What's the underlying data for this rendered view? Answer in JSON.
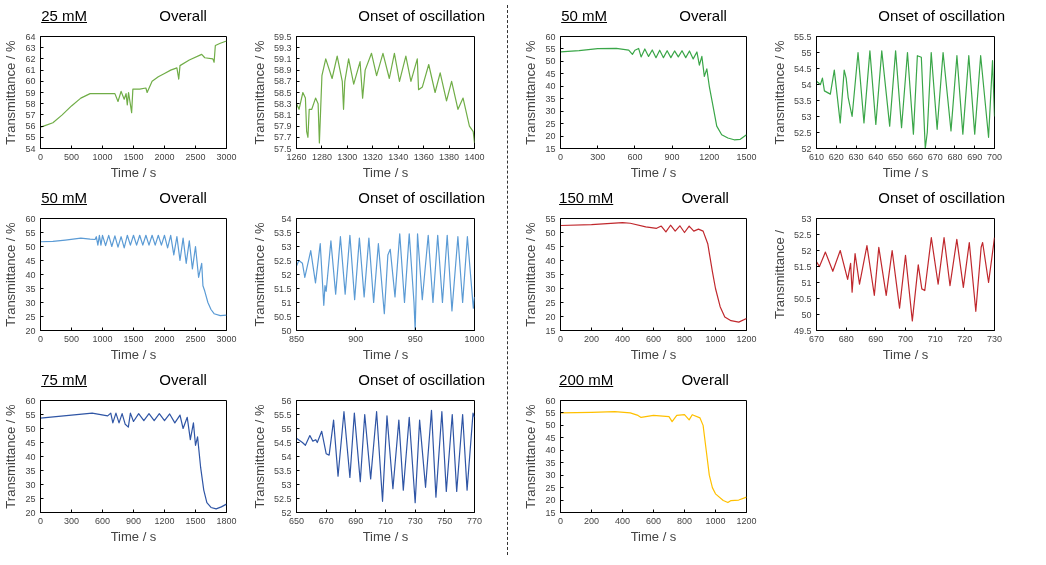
{
  "chart_data": [
    {
      "type": "line",
      "title": "25 mM",
      "subtitle": "Overall",
      "xlabel": "Time / s",
      "ylabel": "Transmittance / %",
      "color": "#70ad47",
      "xlim": [
        0,
        3000
      ],
      "xticks": [
        0,
        500,
        1000,
        1500,
        2000,
        2500,
        3000
      ],
      "ylim": [
        54,
        64
      ],
      "yticks": [
        54,
        55,
        56,
        57,
        58,
        59,
        60,
        61,
        62,
        63,
        64
      ],
      "x": [
        0,
        50,
        200,
        350,
        500,
        650,
        800,
        1000,
        1200,
        1250,
        1300,
        1350,
        1380,
        1400,
        1420,
        1470,
        1490,
        1600,
        1700,
        1720,
        1800,
        1900,
        2000,
        2100,
        2200,
        2230,
        2250,
        2400,
        2600,
        2650,
        2780,
        2800,
        2820,
        2900,
        3000
      ],
      "values": [
        55.9,
        56.0,
        56.3,
        57.0,
        57.8,
        58.5,
        58.9,
        58.9,
        58.9,
        58.2,
        59.1,
        58.4,
        58.9,
        57.9,
        59.0,
        57.2,
        59.3,
        59.3,
        59.4,
        59.0,
        60.0,
        60.4,
        60.7,
        61.0,
        61.2,
        60.2,
        61.4,
        61.9,
        62.4,
        62.1,
        62.0,
        61.7,
        63.2,
        63.4,
        63.6
      ]
    },
    {
      "type": "line",
      "title": "Onset of oscillation",
      "xlabel": "Time / s",
      "ylabel": "Transmittance / %",
      "color": "#70ad47",
      "xlim": [
        1260,
        1400
      ],
      "xticks": [
        1260,
        1280,
        1300,
        1320,
        1340,
        1360,
        1380,
        1400
      ],
      "ylim": [
        57.5,
        59.5
      ],
      "yticks": [
        57.5,
        57.7,
        57.9,
        58.1,
        58.3,
        58.5,
        58.7,
        58.9,
        59.1,
        59.3,
        59.5
      ],
      "x": [
        1260,
        1262,
        1265,
        1267,
        1268,
        1269,
        1270,
        1272,
        1275,
        1277,
        1278,
        1279,
        1280,
        1283,
        1288,
        1292,
        1296,
        1297,
        1298,
        1301,
        1305,
        1310,
        1312,
        1314,
        1319,
        1323,
        1328,
        1333,
        1337,
        1341,
        1346,
        1350,
        1355,
        1356,
        1359,
        1364,
        1369,
        1373,
        1378,
        1382,
        1387,
        1391,
        1396,
        1399,
        1400
      ],
      "values": [
        58.3,
        58.2,
        58.5,
        58.4,
        57.8,
        57.7,
        58.2,
        58.2,
        58.4,
        58.3,
        57.6,
        58.2,
        58.8,
        59.1,
        58.75,
        59.15,
        58.7,
        58.2,
        58.7,
        59.1,
        58.65,
        59.05,
        58.4,
        58.9,
        59.2,
        58.8,
        59.2,
        58.75,
        59.2,
        58.7,
        59.15,
        58.7,
        59.1,
        58.55,
        58.6,
        59.0,
        58.5,
        58.85,
        58.35,
        58.7,
        58.2,
        58.4,
        57.9,
        57.8,
        57.6
      ]
    },
    {
      "type": "line",
      "title": "50 mM",
      "subtitle": "Overall",
      "xlabel": "Time / s",
      "ylabel": "Transmittance / %",
      "color": "#3aa648",
      "xlim": [
        0,
        1500
      ],
      "xticks": [
        0,
        300,
        600,
        900,
        1200,
        1500
      ],
      "ylim": [
        15,
        60
      ],
      "yticks": [
        15,
        20,
        25,
        30,
        35,
        40,
        45,
        50,
        55,
        60
      ],
      "x": [
        0,
        150,
        300,
        450,
        550,
        580,
        600,
        630,
        650,
        680,
        710,
        740,
        770,
        800,
        830,
        860,
        890,
        920,
        950,
        980,
        1010,
        1040,
        1070,
        1100,
        1120,
        1140,
        1160,
        1180,
        1200,
        1230,
        1260,
        1300,
        1350,
        1400,
        1450,
        1500
      ],
      "values": [
        53.8,
        54.3,
        55.1,
        55.2,
        54.5,
        52.8,
        54.5,
        55.2,
        51.8,
        55.0,
        52,
        54.6,
        51.5,
        54.5,
        51.5,
        54.3,
        51.5,
        54.2,
        51.8,
        54.3,
        51.5,
        54.2,
        51,
        53.8,
        48.5,
        52,
        44,
        47,
        40,
        32,
        24,
        20.5,
        19.2,
        18.5,
        18.7,
        20.5
      ]
    },
    {
      "type": "line",
      "title": "Onset of oscillation",
      "xlabel": "Time / s",
      "ylabel": "Transmittance / %",
      "color": "#3aa648",
      "xlim": [
        610,
        700
      ],
      "xticks": [
        610,
        620,
        630,
        640,
        650,
        660,
        670,
        680,
        690,
        700
      ],
      "ylim": [
        52,
        55.5
      ],
      "yticks": [
        52,
        52.5,
        53,
        53.5,
        54,
        54.5,
        55,
        55.5
      ],
      "x": [
        610,
        612,
        613,
        614,
        617,
        619,
        622,
        624,
        625,
        626,
        628,
        631,
        634,
        637,
        640,
        643,
        647,
        650,
        653,
        656,
        659,
        661,
        663,
        665,
        666,
        668,
        671,
        674,
        678,
        681,
        684,
        687,
        690,
        693,
        697,
        699,
        700
      ],
      "values": [
        54.1,
        54.0,
        54.2,
        53.8,
        53.7,
        54.45,
        52.8,
        54.45,
        54.2,
        53.6,
        53.0,
        55.0,
        52.8,
        55.05,
        52.75,
        55.05,
        52.7,
        55.05,
        52.65,
        55.0,
        52.45,
        54.9,
        54.85,
        52.0,
        52.5,
        55.0,
        52.6,
        55.0,
        52.55,
        54.9,
        52.45,
        54.9,
        52.45,
        54.9,
        52.35,
        54.75,
        53.0
      ]
    },
    {
      "type": "line",
      "title": "50 mM",
      "subtitle": "Overall",
      "xlabel": "Time / s",
      "ylabel": "Transmittance / %",
      "color": "#5b9bd5",
      "xlim": [
        0,
        3000
      ],
      "xticks": [
        0,
        500,
        1000,
        1500,
        2000,
        2500,
        3000
      ],
      "ylim": [
        20,
        60
      ],
      "yticks": [
        20,
        25,
        30,
        35,
        40,
        45,
        50,
        55,
        60
      ],
      "x": [
        0,
        200,
        400,
        650,
        800,
        880,
        900,
        925,
        950,
        975,
        1000,
        1050,
        1100,
        1150,
        1200,
        1250,
        1300,
        1350,
        1400,
        1450,
        1500,
        1550,
        1600,
        1650,
        1700,
        1750,
        1800,
        1850,
        1900,
        1950,
        2000,
        2050,
        2100,
        2150,
        2200,
        2250,
        2300,
        2350,
        2400,
        2450,
        2500,
        2550,
        2600,
        2620,
        2650,
        2700,
        2750,
        2800,
        2900,
        3000
      ],
      "values": [
        51.7,
        51.8,
        52.3,
        53.0,
        52.6,
        52.5,
        53.5,
        50.5,
        54,
        50.5,
        54,
        50.3,
        54,
        50,
        53.8,
        49.8,
        53.5,
        49.5,
        54,
        50.5,
        54,
        50.5,
        54,
        50.5,
        54,
        50.5,
        54,
        50.5,
        54,
        50.5,
        54,
        49.5,
        54,
        47,
        53.5,
        45,
        53,
        44,
        52,
        42,
        50,
        39,
        44,
        36,
        34,
        30,
        27.5,
        26,
        25.3,
        25.5
      ]
    },
    {
      "type": "line",
      "title": "Onset of oscillation",
      "xlabel": "Time / s",
      "ylabel": "Transmittance / %",
      "color": "#5b9bd5",
      "xlim": [
        850,
        1000
      ],
      "xticks": [
        850,
        900,
        950,
        1000
      ],
      "ylim": [
        50,
        54
      ],
      "yticks": [
        50,
        50.5,
        51,
        51.5,
        52,
        52.5,
        53,
        53.5,
        54
      ],
      "x": [
        850,
        852,
        855,
        857,
        862,
        866,
        870,
        873,
        874,
        875,
        879,
        883,
        887,
        891,
        895,
        899,
        903,
        907,
        911,
        915,
        919,
        924,
        927,
        929,
        933,
        937,
        941,
        945,
        949,
        950,
        952,
        956,
        961,
        965,
        969,
        973,
        977,
        981,
        986,
        990,
        994,
        999,
        1000
      ],
      "values": [
        52.3,
        52.5,
        52.4,
        51.9,
        52.85,
        51.7,
        53.1,
        50.9,
        51.6,
        51.4,
        53.2,
        51.3,
        53.35,
        51.3,
        53.4,
        51.1,
        53.3,
        51.2,
        53.3,
        51.0,
        53.1,
        50.6,
        52.7,
        52.9,
        51.2,
        53.45,
        51.0,
        53.45,
        51.0,
        50.0,
        53.45,
        51.1,
        53.4,
        51.0,
        53.4,
        51.0,
        53.4,
        50.7,
        53.35,
        51.0,
        53.35,
        50.8,
        51.2
      ]
    },
    {
      "type": "line",
      "title": "150 mM",
      "subtitle": "Overall",
      "xlabel": "Time / s",
      "ylabel": "Transmittance / %",
      "color": "#c0282d",
      "xlim": [
        0,
        1200
      ],
      "xticks": [
        0,
        200,
        400,
        600,
        800,
        1000,
        1200
      ],
      "ylim": [
        15,
        55
      ],
      "yticks": [
        15,
        20,
        25,
        30,
        35,
        40,
        45,
        50,
        55
      ],
      "x": [
        0,
        200,
        400,
        450,
        550,
        620,
        650,
        680,
        710,
        740,
        770,
        800,
        830,
        860,
        890,
        920,
        950,
        980,
        1000,
        1030,
        1060,
        1100,
        1150,
        1200
      ],
      "values": [
        52.5,
        52.8,
        53.5,
        53.3,
        52,
        51.5,
        52.3,
        50.2,
        52.6,
        50.5,
        52.4,
        50,
        52.3,
        50.5,
        51.2,
        50.5,
        46,
        36,
        30,
        23.5,
        19.8,
        18.5,
        18.0,
        19.3
      ]
    },
    {
      "type": "line",
      "title": "Onset of oscillation",
      "xlabel": "Time / s",
      "ylabel": "Transmittance /",
      "color": "#c0282d",
      "xlim": [
        670,
        730
      ],
      "xticks": [
        670,
        680,
        690,
        700,
        710,
        720,
        730
      ],
      "ylim": [
        49.5,
        53
      ],
      "yticks": [
        49.5,
        50,
        50.5,
        51,
        51.5,
        52,
        52.5,
        53
      ],
      "x": [
        670,
        671,
        673,
        675.5,
        678,
        680.5,
        681.5,
        682,
        683,
        684.5,
        687,
        689.5,
        691,
        693.5,
        695.5,
        698,
        700,
        702.3,
        704.3,
        705.5,
        706.5,
        708.7,
        711,
        713,
        715,
        717.3,
        719.5,
        721.5,
        723.7,
        725.5,
        726,
        728,
        730
      ],
      "values": [
        51.65,
        51.5,
        51.95,
        51.35,
        52.0,
        51.1,
        51.6,
        50.7,
        51.9,
        50.95,
        52.15,
        50.6,
        52.1,
        50.6,
        52.0,
        50.2,
        51.85,
        49.8,
        51.55,
        50.8,
        50.75,
        52.4,
        50.95,
        52.4,
        50.9,
        52.35,
        50.85,
        52.25,
        50.1,
        52.1,
        52.25,
        51.0,
        52.4
      ]
    },
    {
      "type": "line",
      "title": "75 mM",
      "subtitle": "Overall",
      "xlabel": "Time / s",
      "ylabel": "Transmittance / %",
      "color": "#2f55a5",
      "xlim": [
        0,
        1800
      ],
      "xticks": [
        0,
        300,
        600,
        900,
        1200,
        1500,
        1800
      ],
      "ylim": [
        20,
        60
      ],
      "yticks": [
        20,
        25,
        30,
        35,
        40,
        45,
        50,
        55,
        60
      ],
      "x": [
        0,
        300,
        500,
        650,
        680,
        700,
        730,
        760,
        790,
        820,
        850,
        870,
        900,
        950,
        1000,
        1050,
        1100,
        1150,
        1200,
        1250,
        1300,
        1350,
        1380,
        1420,
        1450,
        1480,
        1500,
        1520,
        1550,
        1580,
        1610,
        1650,
        1700,
        1750,
        1800
      ],
      "values": [
        53.7,
        54.8,
        55.5,
        54.5,
        55.5,
        52,
        55.5,
        52,
        55.3,
        51.5,
        50.5,
        55.5,
        52.5,
        55.3,
        52.8,
        55.3,
        52.8,
        55.3,
        52.8,
        55.2,
        52,
        54.8,
        50,
        54,
        46,
        52,
        44,
        47,
        36,
        28,
        23.5,
        21.8,
        21.3,
        22,
        23.0
      ]
    },
    {
      "type": "line",
      "title": "Onset of oscillation",
      "xlabel": "Time / s",
      "ylabel": "Transmittance / %",
      "color": "#2f55a5",
      "xlim": [
        650,
        770
      ],
      "xticks": [
        650,
        670,
        690,
        710,
        730,
        750,
        770
      ],
      "ylim": [
        52,
        56
      ],
      "yticks": [
        52,
        52.5,
        53,
        53.5,
        54,
        54.5,
        55,
        55.5,
        56
      ],
      "x": [
        650,
        654,
        656,
        659,
        661,
        663,
        664,
        667,
        670,
        672,
        675,
        678,
        682,
        686,
        689,
        693,
        696,
        700,
        704,
        708,
        711,
        715,
        719,
        722,
        726,
        730,
        733,
        737,
        741,
        744,
        748,
        751,
        755,
        758,
        762,
        765,
        769,
        770
      ],
      "values": [
        54.65,
        54.5,
        54.4,
        54.75,
        54.55,
        54.6,
        54.5,
        54.9,
        54.1,
        54.05,
        55.3,
        53.3,
        55.6,
        53.25,
        55.55,
        53.1,
        55.5,
        53.2,
        55.6,
        52.4,
        55.45,
        52.85,
        55.3,
        52.8,
        55.4,
        52.35,
        55.3,
        52.9,
        55.65,
        52.55,
        55.6,
        52.75,
        55.5,
        52.75,
        55.5,
        52.8,
        55.55,
        55.4
      ]
    },
    {
      "type": "line",
      "title": "200 mM",
      "subtitle": "Overall",
      "xlabel": "Time / s",
      "ylabel": "Transmittance / %",
      "color": "#ffc000",
      "xlim": [
        0,
        1200
      ],
      "xticks": [
        0,
        200,
        400,
        600,
        800,
        1000,
        1200
      ],
      "ylim": [
        15,
        60
      ],
      "yticks": [
        15,
        20,
        25,
        30,
        35,
        40,
        45,
        50,
        55,
        60
      ],
      "x": [
        0,
        200,
        350,
        450,
        500,
        520,
        600,
        700,
        720,
        750,
        800,
        830,
        850,
        900,
        920,
        940,
        960,
        980,
        1000,
        1050,
        1080,
        1100,
        1150,
        1200
      ],
      "values": [
        55.0,
        55.2,
        55.5,
        55.0,
        54.0,
        53.2,
        54.0,
        53.5,
        51.5,
        54.0,
        54.3,
        52.2,
        54.3,
        53.0,
        50,
        40,
        30,
        25,
        22.5,
        19.8,
        19.0,
        19.8,
        20.0,
        21.2
      ]
    }
  ]
}
